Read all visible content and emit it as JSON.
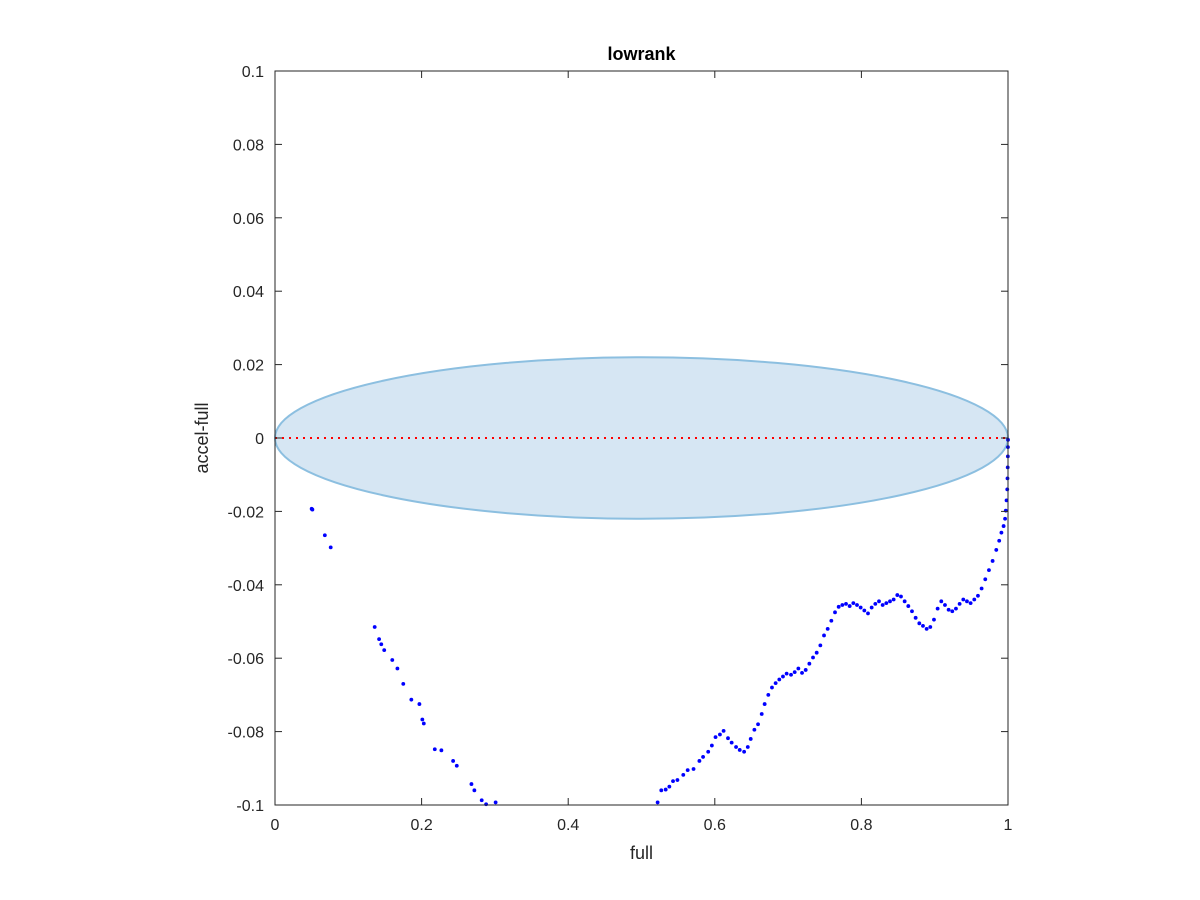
{
  "chart_data": {
    "type": "scatter",
    "title": "lowrank",
    "xlabel": "full",
    "ylabel": "accel-full",
    "xlim": [
      0,
      1
    ],
    "ylim": [
      -0.1,
      0.1
    ],
    "xticks": [
      0,
      0.2,
      0.4,
      0.6,
      0.8,
      1
    ],
    "xtick_labels": [
      "0",
      "0.2",
      "0.4",
      "0.6",
      "0.8",
      "1"
    ],
    "yticks": [
      -0.1,
      -0.08,
      -0.06,
      -0.04,
      -0.02,
      0,
      0.02,
      0.04,
      0.06,
      0.08,
      0.1
    ],
    "ytick_labels": [
      "-0.1",
      "-0.08",
      "-0.06",
      "-0.04",
      "-0.02",
      "0",
      "0.02",
      "0.04",
      "0.06",
      "0.08",
      "0.1"
    ],
    "grid": false,
    "box": true,
    "reference_line": {
      "y": 0,
      "style": "dotted",
      "color": "#ff0000"
    },
    "ellipse": {
      "cx": 0.5,
      "cy": 0,
      "rx": 0.5,
      "ry": 0.022,
      "fill": "#d6e6f3",
      "stroke": "#8cbfe0"
    },
    "series": [
      {
        "color": "#0000ff",
        "points": [
          [
            0.05,
            -0.0193
          ],
          [
            0.051,
            -0.0195
          ],
          [
            0.068,
            -0.0265
          ],
          [
            0.076,
            -0.0298
          ],
          [
            0.136,
            -0.0515
          ],
          [
            0.142,
            -0.0548
          ],
          [
            0.145,
            -0.0562
          ],
          [
            0.149,
            -0.0578
          ],
          [
            0.16,
            -0.0605
          ],
          [
            0.167,
            -0.0628
          ],
          [
            0.175,
            -0.067
          ],
          [
            0.186,
            -0.0713
          ],
          [
            0.197,
            -0.0725
          ],
          [
            0.201,
            -0.0767
          ],
          [
            0.203,
            -0.0778
          ],
          [
            0.218,
            -0.0848
          ],
          [
            0.227,
            -0.0851
          ],
          [
            0.243,
            -0.088
          ],
          [
            0.248,
            -0.0893
          ],
          [
            0.268,
            -0.0943
          ],
          [
            0.272,
            -0.096
          ],
          [
            0.282,
            -0.0987
          ],
          [
            0.288,
            -0.0998
          ],
          [
            0.301,
            -0.0993
          ],
          [
            0.522,
            -0.0993
          ],
          [
            0.527,
            -0.096
          ],
          [
            0.533,
            -0.0958
          ],
          [
            0.538,
            -0.095
          ],
          [
            0.543,
            -0.0935
          ],
          [
            0.549,
            -0.0932
          ],
          [
            0.557,
            -0.0918
          ],
          [
            0.563,
            -0.0905
          ],
          [
            0.571,
            -0.0902
          ],
          [
            0.579,
            -0.088
          ],
          [
            0.584,
            -0.0869
          ],
          [
            0.591,
            -0.0855
          ],
          [
            0.596,
            -0.0838
          ],
          [
            0.601,
            -0.0815
          ],
          [
            0.607,
            -0.0808
          ],
          [
            0.612,
            -0.0798
          ],
          [
            0.618,
            -0.0818
          ],
          [
            0.623,
            -0.083
          ],
          [
            0.629,
            -0.0842
          ],
          [
            0.634,
            -0.085
          ],
          [
            0.64,
            -0.0855
          ],
          [
            0.645,
            -0.0842
          ],
          [
            0.649,
            -0.082
          ],
          [
            0.654,
            -0.0795
          ],
          [
            0.659,
            -0.078
          ],
          [
            0.664,
            -0.0752
          ],
          [
            0.668,
            -0.0725
          ],
          [
            0.673,
            -0.07
          ],
          [
            0.678,
            -0.068
          ],
          [
            0.683,
            -0.0668
          ],
          [
            0.688,
            -0.0658
          ],
          [
            0.693,
            -0.065
          ],
          [
            0.698,
            -0.0642
          ],
          [
            0.704,
            -0.0645
          ],
          [
            0.709,
            -0.0638
          ],
          [
            0.714,
            -0.0628
          ],
          [
            0.719,
            -0.064
          ],
          [
            0.724,
            -0.0632
          ],
          [
            0.729,
            -0.0615
          ],
          [
            0.734,
            -0.0598
          ],
          [
            0.739,
            -0.0585
          ],
          [
            0.744,
            -0.0565
          ],
          [
            0.749,
            -0.0538
          ],
          [
            0.754,
            -0.052
          ],
          [
            0.759,
            -0.0498
          ],
          [
            0.764,
            -0.0475
          ],
          [
            0.769,
            -0.046
          ],
          [
            0.774,
            -0.0455
          ],
          [
            0.779,
            -0.0452
          ],
          [
            0.784,
            -0.0458
          ],
          [
            0.789,
            -0.045
          ],
          [
            0.794,
            -0.0455
          ],
          [
            0.799,
            -0.0462
          ],
          [
            0.804,
            -0.047
          ],
          [
            0.809,
            -0.0478
          ],
          [
            0.814,
            -0.0462
          ],
          [
            0.819,
            -0.0452
          ],
          [
            0.824,
            -0.0445
          ],
          [
            0.829,
            -0.0455
          ],
          [
            0.834,
            -0.045
          ],
          [
            0.839,
            -0.0445
          ],
          [
            0.844,
            -0.044
          ],
          [
            0.849,
            -0.0428
          ],
          [
            0.854,
            -0.0432
          ],
          [
            0.859,
            -0.0445
          ],
          [
            0.864,
            -0.0458
          ],
          [
            0.869,
            -0.0472
          ],
          [
            0.874,
            -0.049
          ],
          [
            0.879,
            -0.0505
          ],
          [
            0.884,
            -0.0512
          ],
          [
            0.889,
            -0.052
          ],
          [
            0.894,
            -0.0515
          ],
          [
            0.899,
            -0.0495
          ],
          [
            0.904,
            -0.0465
          ],
          [
            0.909,
            -0.0445
          ],
          [
            0.914,
            -0.0455
          ],
          [
            0.919,
            -0.0468
          ],
          [
            0.924,
            -0.0472
          ],
          [
            0.929,
            -0.0465
          ],
          [
            0.934,
            -0.0452
          ],
          [
            0.939,
            -0.044
          ],
          [
            0.944,
            -0.0445
          ],
          [
            0.949,
            -0.045
          ],
          [
            0.954,
            -0.044
          ],
          [
            0.959,
            -0.043
          ],
          [
            0.964,
            -0.041
          ],
          [
            0.969,
            -0.0385
          ],
          [
            0.974,
            -0.036
          ],
          [
            0.979,
            -0.0335
          ],
          [
            0.984,
            -0.0305
          ],
          [
            0.988,
            -0.028
          ],
          [
            0.991,
            -0.0258
          ],
          [
            0.994,
            -0.024
          ],
          [
            0.996,
            -0.022
          ],
          [
            0.997,
            -0.0198
          ],
          [
            0.998,
            -0.017
          ],
          [
            0.999,
            -0.014
          ],
          [
            0.9993,
            -0.011
          ],
          [
            0.9996,
            -0.008
          ],
          [
            0.9998,
            -0.005
          ],
          [
            0.9999,
            -0.0025
          ],
          [
            1.0,
            -0.0005
          ]
        ]
      }
    ]
  }
}
